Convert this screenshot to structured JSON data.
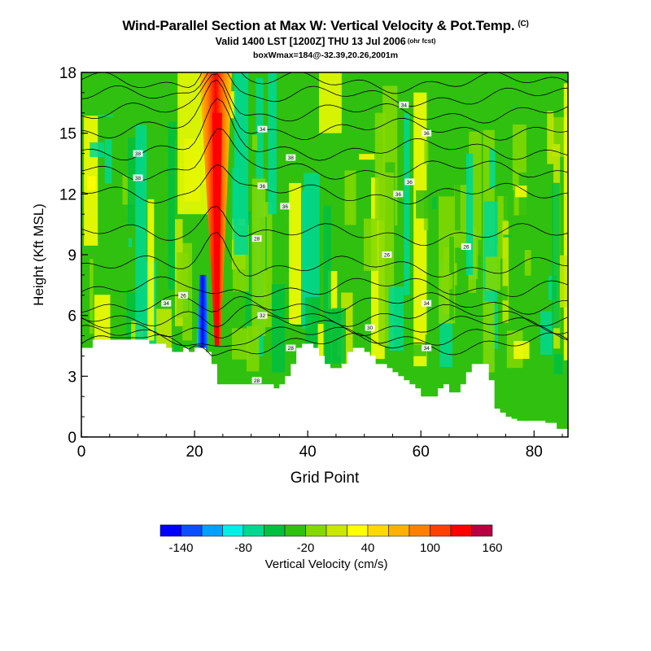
{
  "header": {
    "title": "Wind-Parallel Section at Max W: Vertical Velocity & Pot.Temp.",
    "title_mark": "(C)",
    "valid_line": "Valid 1400 LST [1200Z] THU 13 Jul 2006",
    "valid_suffix": "(ohr fcst)",
    "info_line": "boxWmax=184@-32.39,20.26,2001m"
  },
  "chart_data": {
    "type": "heatmap",
    "title": "Wind-Parallel Section at Max W: Vertical Velocity & Pot.Temp.",
    "xlabel": "Grid Point",
    "ylabel": "Height (Kft MSL)",
    "xlim": [
      0,
      86
    ],
    "ylim": [
      0,
      18
    ],
    "xticks": [
      0,
      20,
      40,
      60,
      80
    ],
    "yticks": [
      0,
      3,
      6,
      9,
      12,
      15,
      18
    ],
    "colorbar": {
      "label": "Vertical Velocity (cm/s)",
      "colors": [
        "#0000ff",
        "#0a50ff",
        "#00a0ff",
        "#00f0e8",
        "#00d890",
        "#00c040",
        "#30c010",
        "#84d800",
        "#c8e800",
        "#ffff00",
        "#ffd800",
        "#ffb000",
        "#ff8000",
        "#ff4000",
        "#ff0000",
        "#b80040"
      ],
      "tick_labels": [
        {
          "value": -140,
          "label": "-140"
        },
        {
          "value": -80,
          "label": "-80"
        },
        {
          "value": -20,
          "label": "-20"
        },
        {
          "value": 40,
          "label": "40"
        },
        {
          "value": 100,
          "label": "100"
        },
        {
          "value": 160,
          "label": "160"
        }
      ]
    },
    "peak_updraft_cm_s": 184,
    "terrain_kft": [
      4.4,
      4.4,
      4.8,
      4.8,
      4.8,
      4.8,
      4.8,
      4.8,
      4.8,
      4.8,
      4.8,
      4.8,
      4.6,
      4.6,
      4.6,
      4.4,
      4.2,
      4.2,
      4.4,
      4.2,
      4.4,
      4.4,
      4.2,
      3.6,
      2.6,
      2.6,
      2.6,
      2.6,
      2.6,
      2.6,
      2.6,
      2.6,
      2.6,
      2.6,
      2.4,
      2.6,
      3.0,
      3.6,
      4.4,
      4.6,
      4.6,
      4.4,
      4.0,
      3.6,
      3.4,
      3.4,
      3.6,
      4.2,
      4.4,
      4.4,
      4.2,
      4.0,
      3.6,
      3.6,
      3.4,
      3.2,
      3.0,
      2.8,
      2.6,
      2.4,
      2.0,
      2.0,
      2.0,
      2.4,
      2.6,
      2.2,
      2.2,
      2.6,
      3.2,
      3.6,
      3.6,
      3.6,
      2.8,
      1.4,
      1.2,
      1.0,
      0.9,
      0.8,
      0.8,
      0.8,
      0.8,
      0.8,
      0.7,
      0.7,
      0.4,
      0.4,
      0.4
    ],
    "updraft_core": {
      "grid_point": 24,
      "base_kft": 4.5,
      "top_kft": 18
    },
    "downdraft_core": {
      "grid_point": 21.5,
      "base_kft": 4.3,
      "top_kft": 8
    },
    "theta_contours": {
      "base_kft": [
        4.6,
        5.0,
        5.5,
        6.0,
        6.6,
        7.4,
        8.4,
        10.0,
        12.0,
        13.2,
        14.2,
        15.2,
        16.0,
        16.8,
        17.5
      ],
      "labels": [
        {
          "text": "28",
          "x": 31,
          "y": 2.8
        },
        {
          "text": "28",
          "x": 37,
          "y": 4.4
        },
        {
          "text": "32",
          "x": 32,
          "y": 6.0
        },
        {
          "text": "30",
          "x": 51,
          "y": 5.4
        },
        {
          "text": "34",
          "x": 61,
          "y": 4.4
        },
        {
          "text": "34",
          "x": 61,
          "y": 6.6
        },
        {
          "text": "26",
          "x": 18,
          "y": 7.0
        },
        {
          "text": "34",
          "x": 15,
          "y": 6.6
        },
        {
          "text": "28",
          "x": 31,
          "y": 9.8
        },
        {
          "text": "26",
          "x": 54,
          "y": 9.0
        },
        {
          "text": "26",
          "x": 68,
          "y": 9.4
        },
        {
          "text": "36",
          "x": 36,
          "y": 11.4
        },
        {
          "text": "36",
          "x": 32,
          "y": 12.4
        },
        {
          "text": "36",
          "x": 58,
          "y": 12.6
        },
        {
          "text": "38",
          "x": 10,
          "y": 12.8
        },
        {
          "text": "36",
          "x": 56,
          "y": 12.0
        },
        {
          "text": "38",
          "x": 10,
          "y": 14.0
        },
        {
          "text": "38",
          "x": 37,
          "y": 13.8
        },
        {
          "text": "34",
          "x": 32,
          "y": 15.2
        },
        {
          "text": "36",
          "x": 61,
          "y": 15.0
        },
        {
          "text": "34",
          "x": 57,
          "y": 16.4
        }
      ]
    }
  }
}
